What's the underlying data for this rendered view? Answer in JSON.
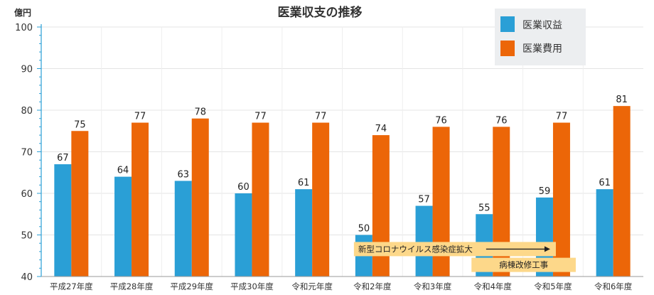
{
  "chart_data": {
    "type": "bar",
    "title": "医業収支の推移",
    "unit_label": "億円",
    "ylim": [
      40,
      100
    ],
    "y_ticks": [
      "40",
      "50",
      "60",
      "70",
      "80",
      "90",
      "100"
    ],
    "grid": true,
    "legend_position": "top-right",
    "categories": [
      "平成27年度",
      "平成28年度",
      "平成29年度",
      "平成30年度",
      "令和元年度",
      "令和2年度",
      "令和3年度",
      "令和4年度",
      "令和5年度",
      "令和6年度"
    ],
    "series": [
      {
        "name": "医業収益",
        "color": "#2a9fd6",
        "values": [
          67,
          64,
          63,
          60,
          61,
          50,
          57,
          55,
          59,
          61
        ]
      },
      {
        "name": "医業費用",
        "color": "#ec6608",
        "values": [
          75,
          77,
          78,
          77,
          77,
          74,
          76,
          76,
          77,
          81
        ]
      }
    ],
    "annotations": [
      {
        "text": "新型コロナウイルス感染症拡大",
        "from": "令和2年度",
        "to": "令和5年度",
        "arrow": true,
        "color": "#fdd88a"
      },
      {
        "text": "病棟改修工事",
        "from": "令和4年度",
        "to": "令和5年度",
        "arrow": false,
        "color": "#fdd88a"
      }
    ]
  }
}
